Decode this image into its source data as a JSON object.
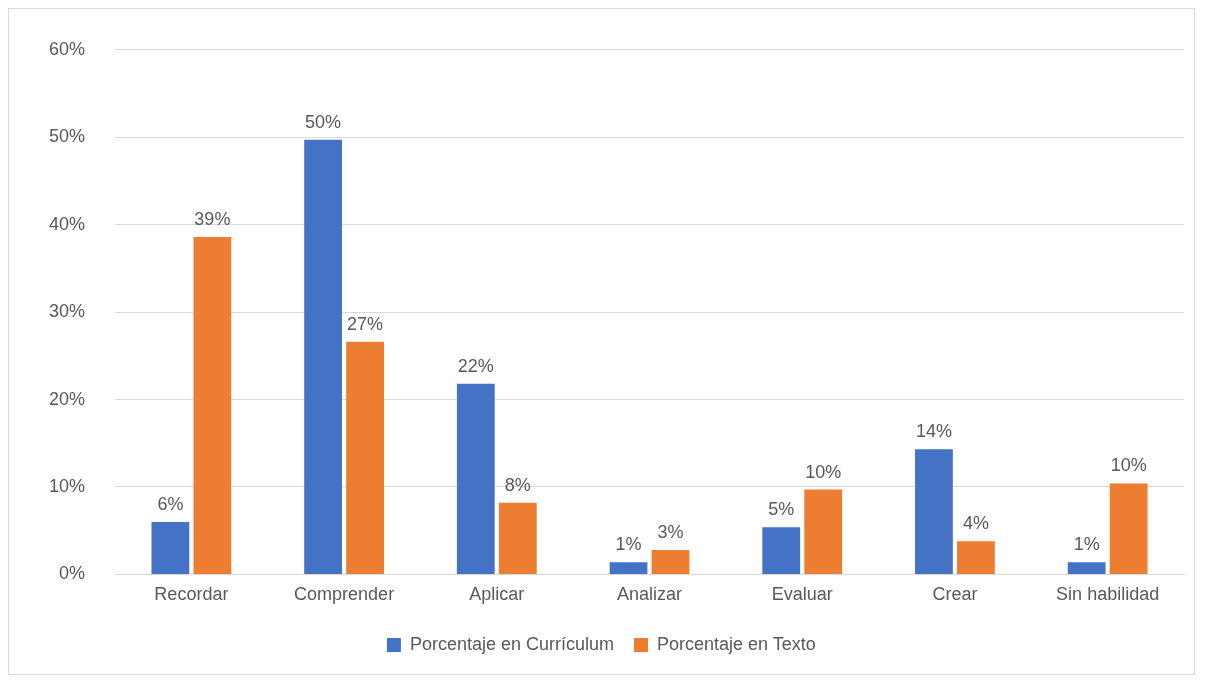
{
  "chart_data": {
    "type": "bar",
    "categories": [
      "Recordar",
      "Comprender",
      "Aplicar",
      "Analizar",
      "Evaluar",
      "Crear",
      "Sin habilidad"
    ],
    "series": [
      {
        "name": "Porcentaje en Currículum",
        "color": "#4472c4",
        "values": [
          6.0,
          49.7,
          21.8,
          1.4,
          5.4,
          14.3,
          1.4
        ],
        "value_labels": [
          "6%",
          "50%",
          "22%",
          "1%",
          "5%",
          "14%",
          "1%"
        ]
      },
      {
        "name": "Porcentaje en Texto",
        "color": "#ed7d31",
        "values": [
          38.6,
          26.6,
          8.2,
          2.8,
          9.7,
          3.8,
          10.4
        ],
        "value_labels": [
          "39%",
          "27%",
          "8%",
          "3%",
          "10%",
          "4%",
          "10%"
        ]
      }
    ],
    "ylim": [
      0,
      60
    ],
    "yticks": [
      {
        "value": 0,
        "label": "0%"
      },
      {
        "value": 10,
        "label": "10%"
      },
      {
        "value": 20,
        "label": "20%"
      },
      {
        "value": 30,
        "label": "30%"
      },
      {
        "value": 40,
        "label": "40%"
      },
      {
        "value": 50,
        "label": "50%"
      },
      {
        "value": 60,
        "label": "60%"
      }
    ],
    "grid": "y",
    "legend": "bottom"
  }
}
